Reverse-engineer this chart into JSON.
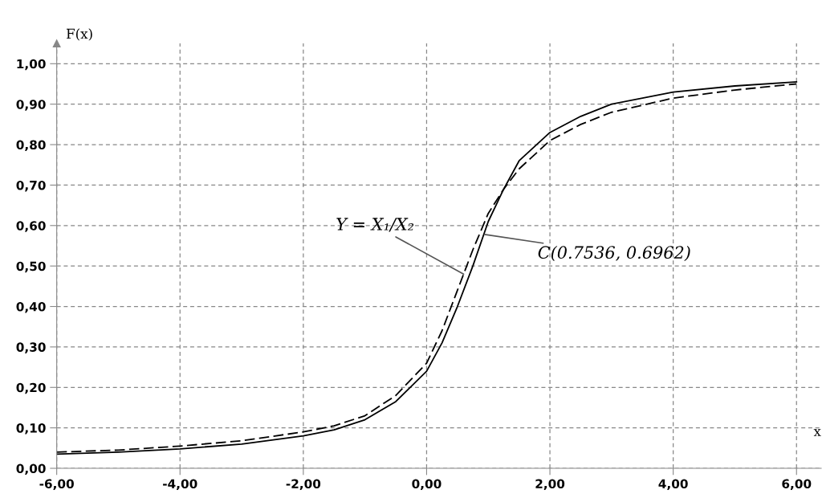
{
  "chart_data": {
    "type": "line",
    "xlabel": "x",
    "ylabel": "F(x)",
    "xlim": [
      -6,
      6.4
    ],
    "ylim": [
      0,
      1.05
    ],
    "xticks": [
      {
        "value": -6,
        "label": "-6,00"
      },
      {
        "value": -4,
        "label": "-4,00"
      },
      {
        "value": -2,
        "label": "-2,00"
      },
      {
        "value": 0,
        "label": "0,00"
      },
      {
        "value": 2,
        "label": "2,00"
      },
      {
        "value": 4,
        "label": "4,00"
      },
      {
        "value": 6,
        "label": "6,00"
      }
    ],
    "yticks": [
      {
        "value": 0,
        "label": "0,00"
      },
      {
        "value": 0.1,
        "label": "0,10"
      },
      {
        "value": 0.2,
        "label": "0,20"
      },
      {
        "value": 0.3,
        "label": "0,30"
      },
      {
        "value": 0.4,
        "label": "0,40"
      },
      {
        "value": 0.5,
        "label": "0,50"
      },
      {
        "value": 0.6,
        "label": "0,60"
      },
      {
        "value": 0.7,
        "label": "0,70"
      },
      {
        "value": 0.8,
        "label": "0,80"
      },
      {
        "value": 0.9,
        "label": "0,90"
      },
      {
        "value": 1.0,
        "label": "1,00"
      }
    ],
    "grid": true,
    "marker": "none",
    "series": [
      {
        "color": "#000000",
        "line_style": "solid",
        "x": [
          -6,
          -5,
          -4,
          -3,
          -2,
          -1.5,
          -1,
          -0.5,
          0,
          0.25,
          0.5,
          0.75,
          1,
          1.25,
          1.5,
          2,
          2.5,
          3,
          4,
          5,
          6
        ],
        "values": [
          0.035,
          0.04,
          0.048,
          0.06,
          0.08,
          0.095,
          0.12,
          0.165,
          0.24,
          0.31,
          0.4,
          0.5,
          0.61,
          0.69,
          0.76,
          0.83,
          0.87,
          0.9,
          0.93,
          0.945,
          0.955
        ]
      },
      {
        "color": "#000000",
        "line_style": "dashed",
        "x": [
          -6,
          -5,
          -4,
          -3,
          -2,
          -1.5,
          -1,
          -0.5,
          0,
          0.25,
          0.5,
          0.75,
          1,
          1.25,
          1.5,
          2,
          2.5,
          3,
          4,
          5,
          6
        ],
        "values": [
          0.04,
          0.045,
          0.055,
          0.068,
          0.09,
          0.105,
          0.13,
          0.18,
          0.26,
          0.34,
          0.44,
          0.54,
          0.63,
          0.69,
          0.74,
          0.81,
          0.85,
          0.88,
          0.915,
          0.935,
          0.95
        ]
      }
    ],
    "annotations": [
      {
        "text": "Y = X₁/X₂",
        "x": 0.6,
        "y": 0.48
      },
      {
        "text": "C(0.7536, 0.6962)",
        "x": 0.94,
        "y": 0.578
      }
    ]
  }
}
